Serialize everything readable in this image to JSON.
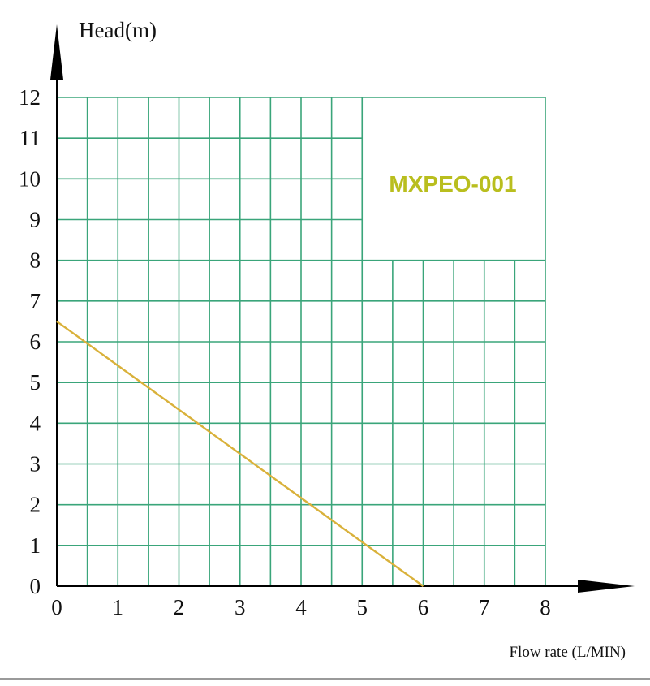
{
  "chart_data": {
    "type": "line",
    "ylabel": "Head(m)",
    "xlabel": "Flow rate (L/MIN)",
    "xlim": [
      0,
      8
    ],
    "ylim": [
      0,
      12
    ],
    "x_ticks": [
      "0",
      "1",
      "2",
      "3",
      "4",
      "5",
      "6",
      "7",
      "8"
    ],
    "y_ticks": [
      "0",
      "1",
      "2",
      "3",
      "4",
      "5",
      "6",
      "7",
      "8",
      "9",
      "10",
      "11",
      "12"
    ],
    "grid": true,
    "annotation": "MXPEO-001",
    "series": [
      {
        "x": [
          0,
          6
        ],
        "y": [
          6.5,
          0
        ]
      }
    ]
  },
  "colors": {
    "grid": "#3aa57a",
    "curve": "#d9b13a",
    "annotation": "#b9be1e",
    "axis": "#000000"
  }
}
